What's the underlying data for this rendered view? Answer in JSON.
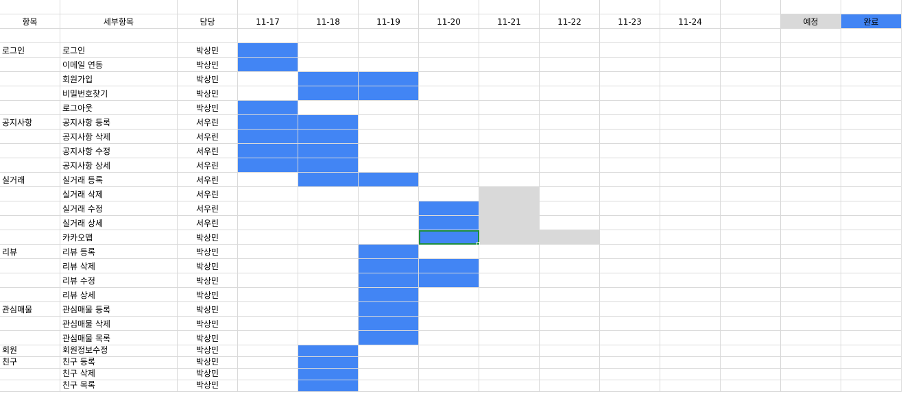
{
  "header": {
    "category": "항목",
    "detail": "세부항목",
    "owner": "담당",
    "dates": [
      "11-17",
      "11-18",
      "11-19",
      "11-20",
      "11-21",
      "11-22",
      "11-23",
      "11-24"
    ]
  },
  "legend": {
    "planned_label": "예정",
    "planned_color": "#d9d9d9",
    "done_label": "완료",
    "done_color": "#4285f4"
  },
  "tasks": [
    {
      "category": "로그인",
      "detail": "로그인",
      "owner": "박상민",
      "done": [
        0
      ],
      "planned": []
    },
    {
      "category": "",
      "detail": "이메일 연동",
      "owner": "박상민",
      "done": [
        0
      ],
      "planned": []
    },
    {
      "category": "",
      "detail": "회원가입",
      "owner": "박상민",
      "done": [
        1,
        2
      ],
      "planned": []
    },
    {
      "category": "",
      "detail": "비밀번호찾기",
      "owner": "박상민",
      "done": [
        1,
        2
      ],
      "planned": []
    },
    {
      "category": "",
      "detail": "로그아웃",
      "owner": "박상민",
      "done": [
        0
      ],
      "planned": []
    },
    {
      "category": "공지사항",
      "detail": "공지사항 등록",
      "owner": "서우린",
      "done": [
        0,
        1
      ],
      "planned": []
    },
    {
      "category": "",
      "detail": "공지사항 삭제",
      "owner": "서우린",
      "done": [
        0,
        1
      ],
      "planned": []
    },
    {
      "category": "",
      "detail": "공지사항 수정",
      "owner": "서우린",
      "done": [
        0,
        1
      ],
      "planned": []
    },
    {
      "category": "",
      "detail": "공지사항 상세",
      "owner": "서우린",
      "done": [
        0,
        1
      ],
      "planned": []
    },
    {
      "category": "실거래",
      "detail": "실거래 등록",
      "owner": "서우린",
      "done": [
        1,
        2
      ],
      "planned": []
    },
    {
      "category": "",
      "detail": "실거래 삭제",
      "owner": "서우린",
      "done": [],
      "planned": [
        4
      ]
    },
    {
      "category": "",
      "detail": "실거래 수정",
      "owner": "서우린",
      "done": [
        3
      ],
      "planned": [
        4
      ]
    },
    {
      "category": "",
      "detail": "실거래 상세",
      "owner": "서우린",
      "done": [
        3
      ],
      "planned": [
        4
      ]
    },
    {
      "category": "",
      "detail": "카카오맵",
      "owner": "박상민",
      "done": [
        3
      ],
      "planned": [
        4,
        5
      ]
    },
    {
      "category": "리뷰",
      "detail": "리뷰 등록",
      "owner": "박상민",
      "done": [
        2
      ],
      "planned": []
    },
    {
      "category": "",
      "detail": "리뷰 삭제",
      "owner": "박상민",
      "done": [
        2,
        3
      ],
      "planned": []
    },
    {
      "category": "",
      "detail": "리뷰 수정",
      "owner": "박상민",
      "done": [
        2,
        3
      ],
      "planned": []
    },
    {
      "category": "",
      "detail": "리뷰 상세",
      "owner": "박상민",
      "done": [
        2
      ],
      "planned": []
    },
    {
      "category": "관심매물",
      "detail": "관심매물 등록",
      "owner": "박상민",
      "done": [
        2
      ],
      "planned": []
    },
    {
      "category": "",
      "detail": "관심매물 삭제",
      "owner": "박상민",
      "done": [
        2
      ],
      "planned": []
    },
    {
      "category": "",
      "detail": "관심매물 목록",
      "owner": "박상민",
      "done": [
        2
      ],
      "planned": []
    },
    {
      "category": "회원",
      "detail": "회원정보수정",
      "owner": "박상민",
      "done": [
        1
      ],
      "planned": []
    },
    {
      "category": "친구",
      "detail": "친구 등록",
      "owner": "박상민",
      "done": [
        1
      ],
      "planned": []
    },
    {
      "category": "",
      "detail": "친구 삭제",
      "owner": "박상민",
      "done": [
        1
      ],
      "planned": []
    },
    {
      "category": "",
      "detail": "친구 목록",
      "owner": "박상민",
      "done": [
        1
      ],
      "planned": []
    }
  ],
  "selected_cell": {
    "task": 13,
    "date": 3
  }
}
